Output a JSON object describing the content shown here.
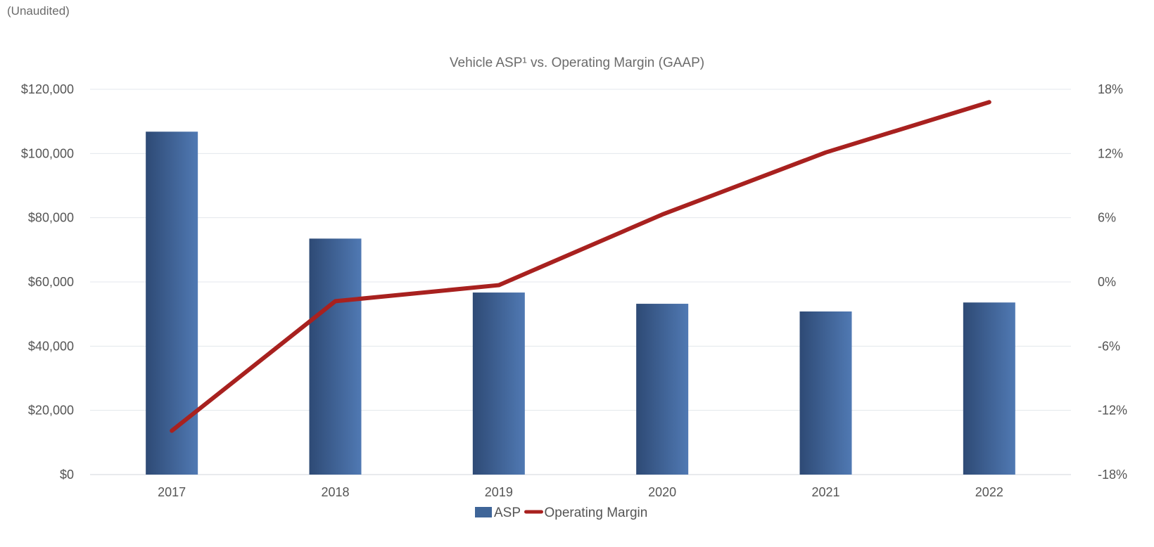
{
  "header": {
    "subtitle": "(Unaudited)"
  },
  "chart_data": {
    "type": "bar",
    "title": "Vehicle ASP¹ vs. Operating Margin (GAAP)",
    "categories": [
      "2017",
      "2018",
      "2019",
      "2020",
      "2021",
      "2022"
    ],
    "series": [
      {
        "name": "ASP",
        "kind": "bar",
        "axis": "left",
        "color": "#3f6598",
        "values": [
          106800,
          73500,
          56700,
          53200,
          50800,
          53600
        ]
      },
      {
        "name": "Operating Margin",
        "kind": "line",
        "axis": "right",
        "color": "#a8211f",
        "values": [
          -13.9,
          -1.8,
          -0.3,
          6.3,
          12.1,
          16.8
        ]
      }
    ],
    "left_axis": {
      "min": 0,
      "max": 120000,
      "ticks": [
        0,
        20000,
        40000,
        60000,
        80000,
        100000,
        120000
      ],
      "tick_labels": [
        "$0",
        "$20,000",
        "$40,000",
        "$60,000",
        "$80,000",
        "$100,000",
        "$120,000"
      ]
    },
    "right_axis": {
      "min": -18,
      "max": 18,
      "ticks": [
        -18,
        -12,
        -6,
        0,
        6,
        12,
        18
      ],
      "tick_labels": [
        "-18%",
        "-12%",
        "-6%",
        "0%",
        "6%",
        "12%",
        "18%"
      ]
    },
    "legend": {
      "position": "bottom-center",
      "items": [
        {
          "label": "ASP",
          "symbol": "bar",
          "color": "#3f6598"
        },
        {
          "label": "Operating Margin",
          "symbol": "line",
          "color": "#a8211f"
        }
      ]
    },
    "grid": true
  }
}
